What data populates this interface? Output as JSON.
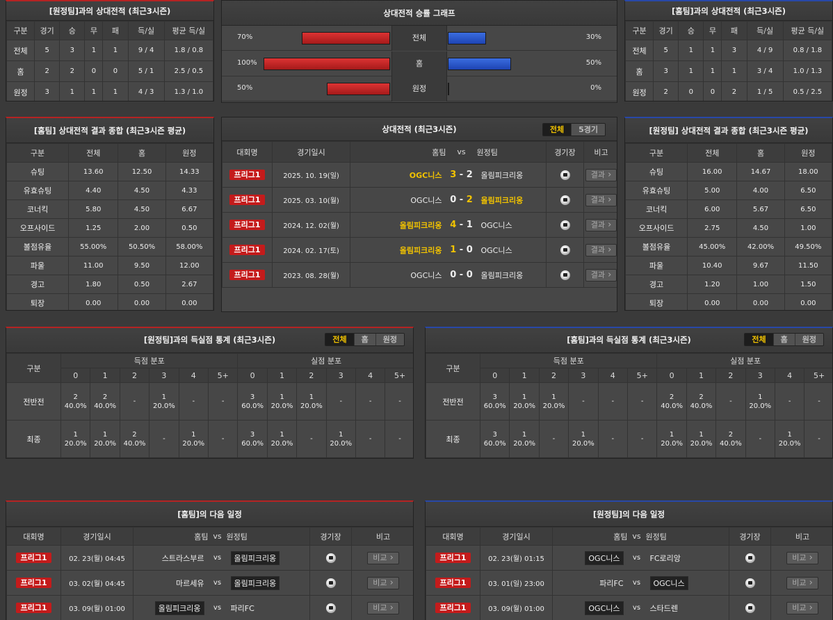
{
  "h2h_away": {
    "title": "[원정팀]과의 상대전적 (최근3시즌)",
    "headers": [
      "구분",
      "경기",
      "승",
      "무",
      "패",
      "득/실",
      "평균 득/실"
    ],
    "rows": [
      [
        "전체",
        "5",
        "3",
        "1",
        "1",
        "9 / 4",
        "1.8 / 0.8"
      ],
      [
        "홈",
        "2",
        "2",
        "0",
        "0",
        "5 / 1",
        "2.5 / 0.5"
      ],
      [
        "원정",
        "3",
        "1",
        "1",
        "1",
        "4 / 3",
        "1.3 / 1.0"
      ]
    ]
  },
  "graph": {
    "title": "상대전적 승률 그래프",
    "rows": [
      {
        "left": "70%",
        "label": "전체",
        "right": "30%",
        "l": 0.7,
        "r": 0.3
      },
      {
        "left": "100%",
        "label": "홈",
        "right": "50%",
        "l": 1.0,
        "r": 0.5
      },
      {
        "left": "50%",
        "label": "원정",
        "right": "0%",
        "l": 0.5,
        "r": 0.0
      }
    ]
  },
  "h2h_home": {
    "title": "[홈팀]과의 상대전적 (최근3시즌)",
    "headers": [
      "구분",
      "경기",
      "승",
      "무",
      "패",
      "득/실",
      "평균 득/실"
    ],
    "rows": [
      [
        "전체",
        "5",
        "1",
        "1",
        "3",
        "4 / 9",
        "0.8 / 1.8"
      ],
      [
        "홈",
        "3",
        "1",
        "1",
        "1",
        "3 / 4",
        "1.0 / 1.3"
      ],
      [
        "원정",
        "2",
        "0",
        "0",
        "2",
        "1 / 5",
        "0.5 / 2.5"
      ]
    ]
  },
  "sum_home": {
    "title": "[홈팀] 상대전적 결과 종합 (최근3시즌 평균)",
    "headers": [
      "구분",
      "전체",
      "홈",
      "원정"
    ],
    "rows": [
      [
        "슈팅",
        "13.60",
        "12.50",
        "14.33"
      ],
      [
        "유효슈팅",
        "4.40",
        "4.50",
        "4.33"
      ],
      [
        "코너킥",
        "5.80",
        "4.50",
        "6.67"
      ],
      [
        "오프사이드",
        "1.25",
        "2.00",
        "0.50"
      ],
      [
        "볼점유율",
        "55.00%",
        "50.50%",
        "58.00%"
      ],
      [
        "파울",
        "11.00",
        "9.50",
        "12.00"
      ],
      [
        "경고",
        "1.80",
        "0.50",
        "2.67"
      ],
      [
        "퇴장",
        "0.00",
        "0.00",
        "0.00"
      ]
    ]
  },
  "matches": {
    "title": "상대전적 (최근3시즌)",
    "toggle": [
      "전체",
      "5경기"
    ],
    "headers": [
      "대회명",
      "경기일시",
      "홈팀",
      "vs",
      "원정팀",
      "경기장",
      "비고"
    ],
    "rows": [
      {
        "league": "프리그1",
        "date": "2025. 10. 19(일)",
        "home": "OGC니스",
        "hs": "3",
        "as": "2",
        "away": "올림피크리옹",
        "hw": true,
        "aw": false,
        "btn": "결과"
      },
      {
        "league": "프리그1",
        "date": "2025. 03. 10(월)",
        "home": "OGC니스",
        "hs": "0",
        "as": "2",
        "away": "올림피크리옹",
        "hw": false,
        "aw": true,
        "btn": "결과"
      },
      {
        "league": "프리그1",
        "date": "2024. 12. 02(월)",
        "home": "올림피크리옹",
        "hs": "4",
        "as": "1",
        "away": "OGC니스",
        "hw": true,
        "aw": false,
        "btn": "결과"
      },
      {
        "league": "프리그1",
        "date": "2024. 02. 17(토)",
        "home": "올림피크리옹",
        "hs": "1",
        "as": "0",
        "away": "OGC니스",
        "hw": true,
        "aw": false,
        "btn": "결과"
      },
      {
        "league": "프리그1",
        "date": "2023. 08. 28(월)",
        "home": "OGC니스",
        "hs": "0",
        "as": "0",
        "away": "올림피크리옹",
        "hw": false,
        "aw": false,
        "btn": "결과"
      }
    ]
  },
  "sum_away": {
    "title": "[원정팀] 상대전적 결과 종합 (최근3시즌 평균)",
    "headers": [
      "구분",
      "전체",
      "홈",
      "원정"
    ],
    "rows": [
      [
        "슈팅",
        "16.00",
        "14.67",
        "18.00"
      ],
      [
        "유효슈팅",
        "5.00",
        "4.00",
        "6.50"
      ],
      [
        "코너킥",
        "6.00",
        "5.67",
        "6.50"
      ],
      [
        "오프사이드",
        "2.75",
        "4.50",
        "1.00"
      ],
      [
        "볼점유율",
        "45.00%",
        "42.00%",
        "49.50%"
      ],
      [
        "파울",
        "10.40",
        "9.67",
        "11.50"
      ],
      [
        "경고",
        "1.20",
        "1.00",
        "1.50"
      ],
      [
        "퇴장",
        "0.00",
        "0.00",
        "0.00"
      ]
    ]
  },
  "goals_left": {
    "title": "[원정팀]과의 득실점 통계 (최근3시즌)",
    "toggle": [
      "전체",
      "홈",
      "원정"
    ],
    "h_label": "구분",
    "scored": "득점 분포",
    "conceded": "실점 분포",
    "cols": [
      "0",
      "1",
      "2",
      "3",
      "4",
      "5+"
    ],
    "rows": [
      {
        "label": "전반전",
        "cells": [
          [
            "2",
            "40.0%"
          ],
          [
            "2",
            "40.0%"
          ],
          [
            "-",
            ""
          ],
          [
            "1",
            "20.0%"
          ],
          [
            "-",
            ""
          ],
          [
            "-",
            ""
          ],
          [
            "3",
            "60.0%"
          ],
          [
            "1",
            "20.0%"
          ],
          [
            "1",
            "20.0%"
          ],
          [
            "-",
            ""
          ],
          [
            "-",
            ""
          ],
          [
            "-",
            ""
          ]
        ]
      },
      {
        "label": "최종",
        "cells": [
          [
            "1",
            "20.0%"
          ],
          [
            "1",
            "20.0%"
          ],
          [
            "2",
            "40.0%"
          ],
          [
            "-",
            ""
          ],
          [
            "1",
            "20.0%"
          ],
          [
            "-",
            ""
          ],
          [
            "3",
            "60.0%"
          ],
          [
            "1",
            "20.0%"
          ],
          [
            "-",
            ""
          ],
          [
            "1",
            "20.0%"
          ],
          [
            "-",
            ""
          ],
          [
            "-",
            ""
          ]
        ]
      }
    ]
  },
  "goals_right": {
    "title": "[홈팀]과의 득실점 통계 (최근3시즌)",
    "toggle": [
      "전체",
      "홈",
      "원정"
    ],
    "h_label": "구분",
    "scored": "득점 분포",
    "conceded": "실점 분포",
    "cols": [
      "0",
      "1",
      "2",
      "3",
      "4",
      "5+"
    ],
    "rows": [
      {
        "label": "전반전",
        "cells": [
          [
            "3",
            "60.0%"
          ],
          [
            "1",
            "20.0%"
          ],
          [
            "1",
            "20.0%"
          ],
          [
            "-",
            ""
          ],
          [
            "-",
            ""
          ],
          [
            "-",
            ""
          ],
          [
            "2",
            "40.0%"
          ],
          [
            "2",
            "40.0%"
          ],
          [
            "-",
            ""
          ],
          [
            "1",
            "20.0%"
          ],
          [
            "-",
            ""
          ],
          [
            "-",
            ""
          ]
        ]
      },
      {
        "label": "최종",
        "cells": [
          [
            "3",
            "60.0%"
          ],
          [
            "1",
            "20.0%"
          ],
          [
            "-",
            ""
          ],
          [
            "1",
            "20.0%"
          ],
          [
            "-",
            ""
          ],
          [
            "-",
            ""
          ],
          [
            "1",
            "20.0%"
          ],
          [
            "1",
            "20.0%"
          ],
          [
            "2",
            "40.0%"
          ],
          [
            "-",
            ""
          ],
          [
            "1",
            "20.0%"
          ],
          [
            "-",
            ""
          ]
        ]
      }
    ]
  },
  "next_home": {
    "title": "[홈팀]의 다음 일정",
    "headers": [
      "대회명",
      "경기일시",
      "홈팀",
      "vs",
      "원정팀",
      "경기장",
      "비고"
    ],
    "rows": [
      {
        "league": "프리그1",
        "date": "02. 23(월) 04:45",
        "home": "스트라스부르",
        "away": "올림피크리옹",
        "hb": false,
        "ab": true,
        "btn": "비교"
      },
      {
        "league": "프리그1",
        "date": "03. 02(월) 04:45",
        "home": "마르세유",
        "away": "올림피크리옹",
        "hb": false,
        "ab": true,
        "btn": "비교"
      },
      {
        "league": "프리그1",
        "date": "03. 09(월) 01:00",
        "home": "올림피크리옹",
        "away": "파리FC",
        "hb": true,
        "ab": false,
        "btn": "비교"
      }
    ]
  },
  "next_away": {
    "title": "[원정팀]의 다음 일정",
    "headers": [
      "대회명",
      "경기일시",
      "홈팀",
      "vs",
      "원정팀",
      "경기장",
      "비고"
    ],
    "rows": [
      {
        "league": "프리그1",
        "date": "02. 23(월) 01:15",
        "home": "OGC니스",
        "away": "FC로리앙",
        "hb": true,
        "ab": false,
        "btn": "비교"
      },
      {
        "league": "프리그1",
        "date": "03. 01(일) 23:00",
        "home": "파리FC",
        "away": "OGC니스",
        "hb": false,
        "ab": true,
        "btn": "비교"
      },
      {
        "league": "프리그1",
        "date": "03. 09(월) 01:00",
        "home": "OGC니스",
        "away": "스타드렌",
        "hb": true,
        "ab": false,
        "btn": "비교"
      }
    ]
  }
}
